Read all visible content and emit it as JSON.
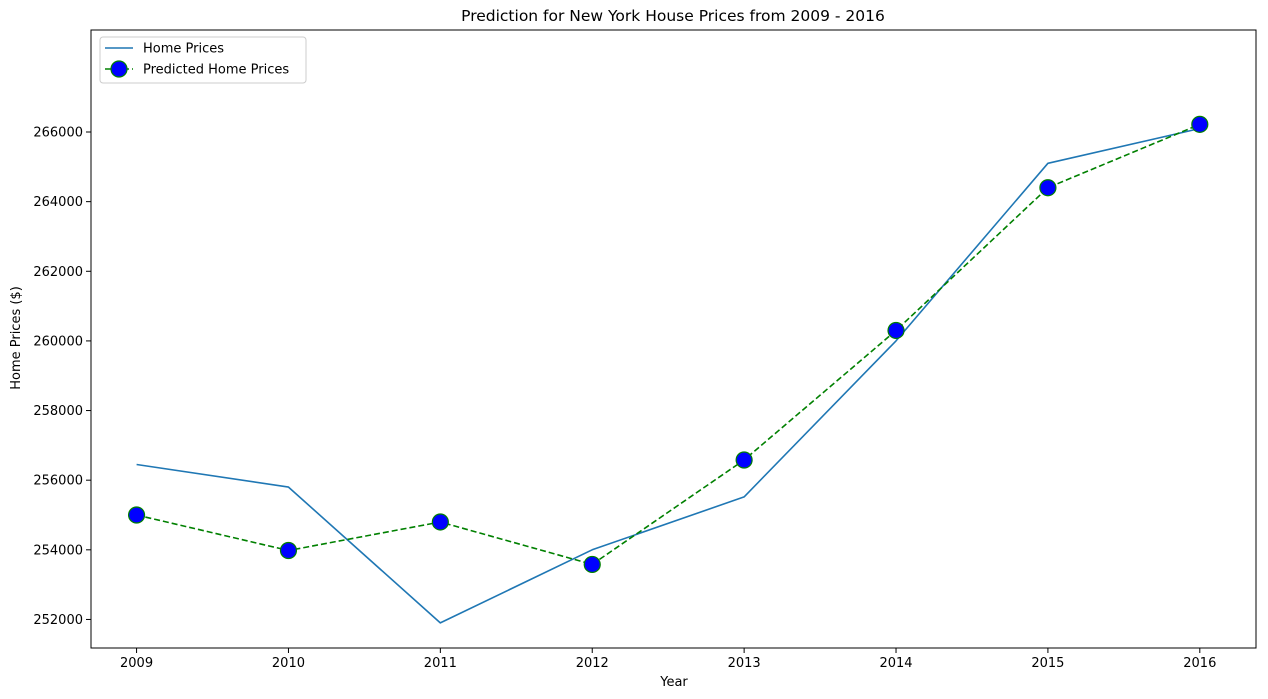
{
  "chart_data": {
    "type": "line",
    "title": "Prediction for New York House Prices from 2009 - 2016",
    "xlabel": "Year",
    "ylabel": "Home Prices ($)",
    "x": [
      2009,
      2010,
      2011,
      2012,
      2013,
      2014,
      2015,
      2016
    ],
    "xticks": [
      "2009",
      "2010",
      "2011",
      "2012",
      "2013",
      "2014",
      "2015",
      "2016"
    ],
    "yticks": [
      252000,
      254000,
      256000,
      258000,
      260000,
      262000,
      264000,
      266000
    ],
    "ytick_labels": [
      "252000",
      "254000",
      "256000",
      "258000",
      "260000",
      "262000",
      "264000",
      "266000"
    ],
    "xlim": [
      2008.7,
      2016.37
    ],
    "ylim": [
      251180,
      268930
    ],
    "grid": false,
    "legend_position": "top-left",
    "series": [
      {
        "name": "Home Prices",
        "style": "solid",
        "color": "#1f77b4",
        "values": [
          256450,
          255800,
          251900,
          254000,
          255520,
          260000,
          265100,
          266100
        ]
      },
      {
        "name": "Predicted Home Prices",
        "style": "dashed",
        "color": "#008000",
        "marker": "circle",
        "marker_fill": "#0000ff",
        "values": [
          255000,
          253980,
          254800,
          253580,
          256580,
          260300,
          264400,
          266220
        ]
      }
    ]
  }
}
